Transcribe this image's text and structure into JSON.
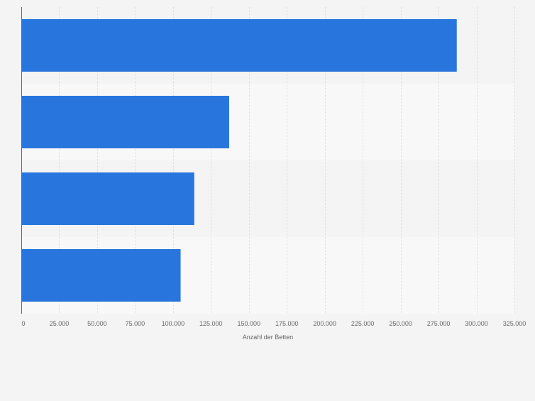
{
  "chart_data": {
    "type": "bar",
    "orientation": "horizontal",
    "categories": [
      "",
      "",
      "",
      ""
    ],
    "values": [
      287000,
      137000,
      114000,
      105000
    ],
    "title": "",
    "xlabel": "Anzahl der Betten",
    "ylabel": "",
    "xlim": [
      0,
      325000
    ],
    "xticks": [
      0,
      25000,
      50000,
      75000,
      100000,
      125000,
      150000,
      175000,
      200000,
      225000,
      250000,
      275000,
      300000,
      325000
    ],
    "xtick_labels": [
      "0",
      "25.000",
      "50.000",
      "75.000",
      "100.000",
      "125.000",
      "150.000",
      "175.000",
      "200.000",
      "225.000",
      "250.000",
      "275.000",
      "300.000",
      "325.000"
    ],
    "grid": true,
    "legend": "none",
    "colors": {
      "bar": "#2876dd",
      "band_dark": "#f4f4f4",
      "band_light": "#f8f8f8",
      "grid": "#dcdcdc",
      "axis": "#666666",
      "text": "#666666"
    }
  }
}
